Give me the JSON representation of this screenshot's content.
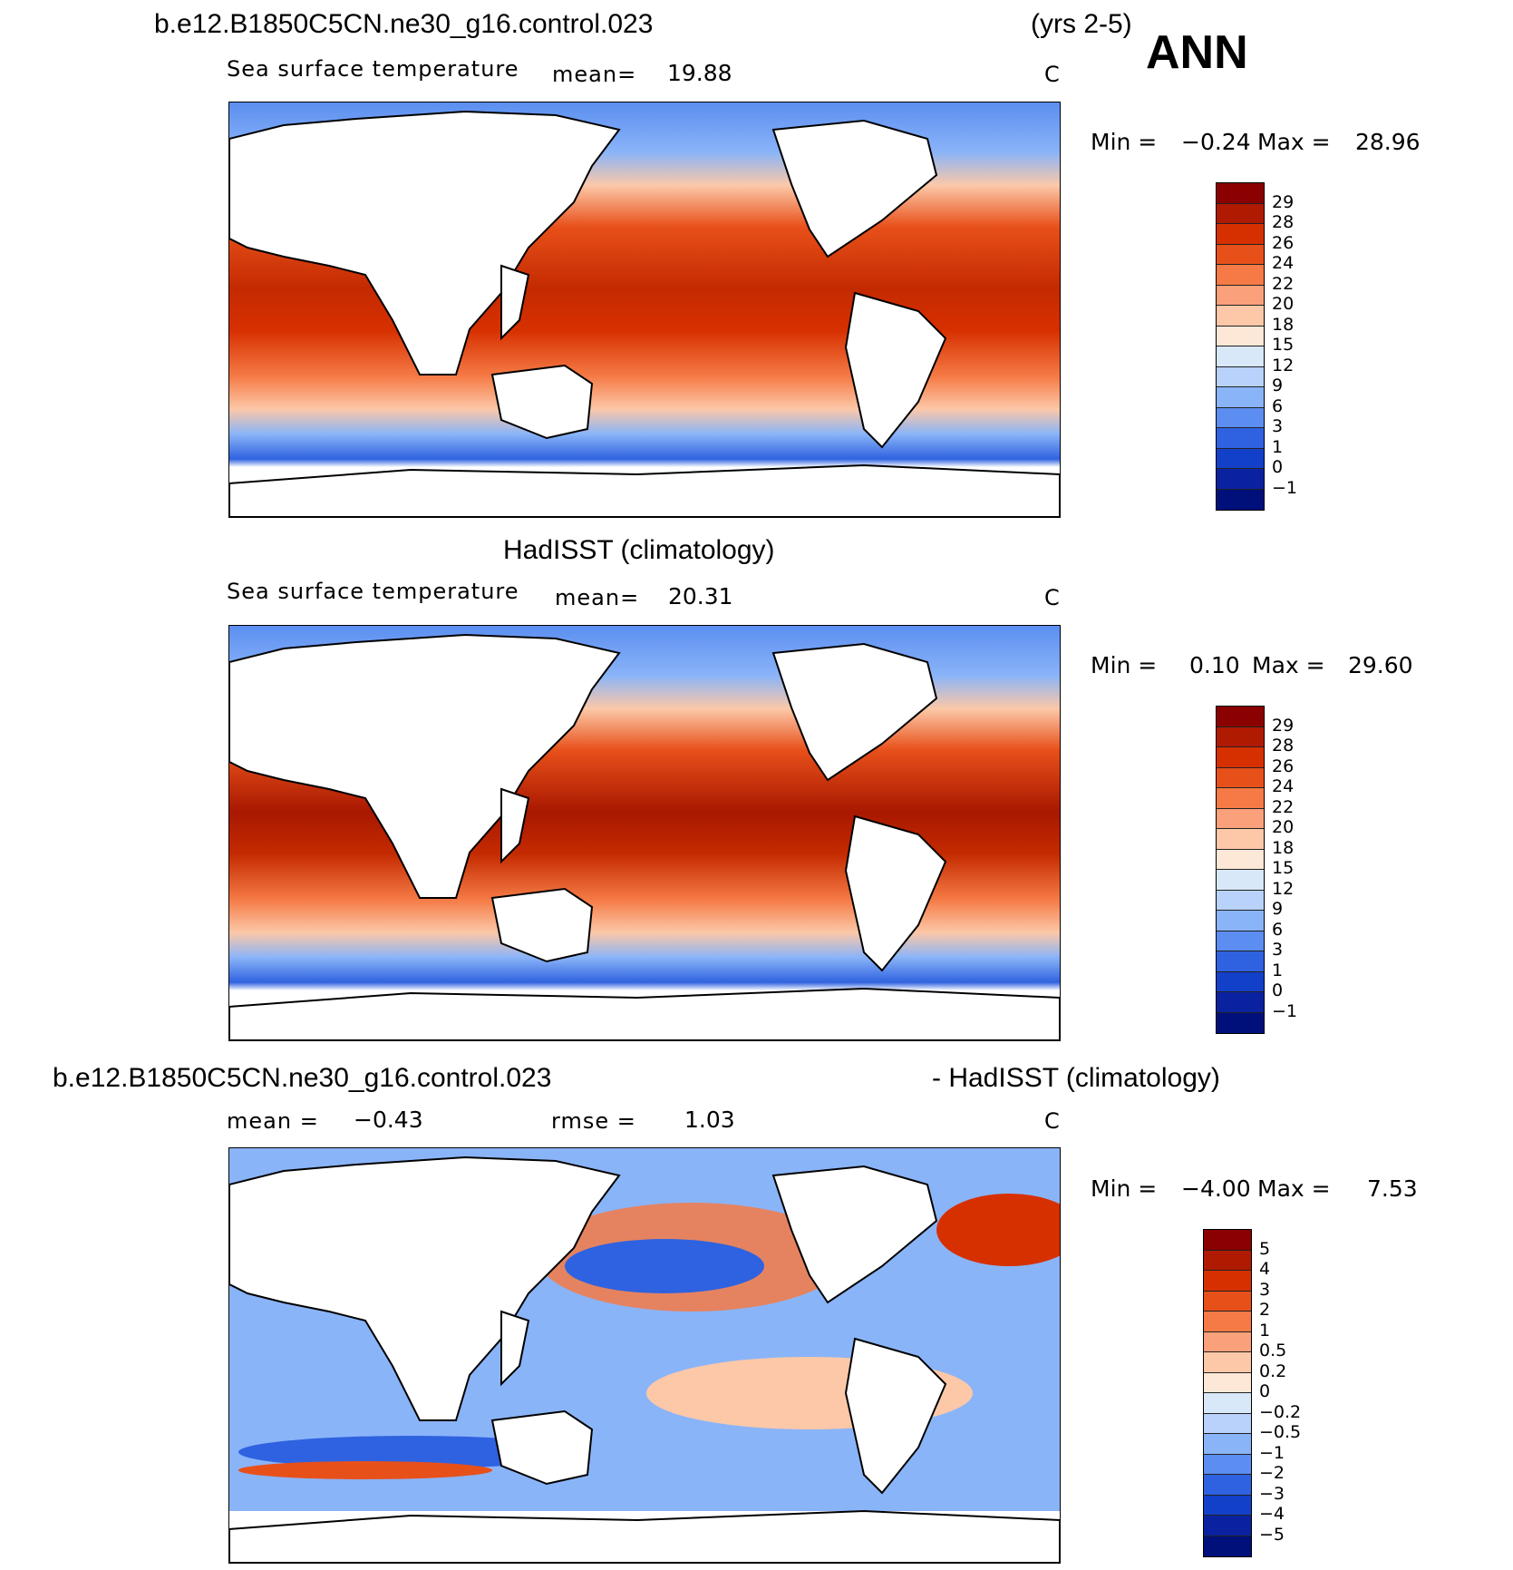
{
  "header": {
    "case_name": "b.e12.B1850C5CN.ne30_g16.control.023",
    "years": "(yrs 2-5)",
    "season": "ANN"
  },
  "panel1": {
    "variable": "Sea surface temperature",
    "mean_label": "mean=",
    "mean_value": "19.88",
    "units": "C",
    "min_label": "Min =",
    "min_value": "−0.24",
    "max_label": "Max =",
    "max_value": "28.96",
    "colorbar_ticks": [
      "29",
      "28",
      "26",
      "24",
      "22",
      "20",
      "18",
      "15",
      "12",
      "9",
      "6",
      "3",
      "1",
      "0",
      "−1"
    ]
  },
  "panel2": {
    "title": "HadISST (climatology)",
    "variable": "Sea surface temperature",
    "mean_label": "mean=",
    "mean_value": "20.31",
    "units": "C",
    "min_label": "Min =",
    "min_value": "0.10",
    "max_label": "Max =",
    "max_value": "29.60",
    "colorbar_ticks": [
      "29",
      "28",
      "26",
      "24",
      "22",
      "20",
      "18",
      "15",
      "12",
      "9",
      "6",
      "3",
      "1",
      "0",
      "−1"
    ]
  },
  "panel3": {
    "title_left": "b.e12.B1850C5CN.ne30_g16.control.023",
    "title_right": "- HadISST (climatology)",
    "mean_label": "mean =",
    "mean_value": "−0.43",
    "rmse_label": "rmse =",
    "rmse_value": "1.03",
    "units": "C",
    "min_label": "Min =",
    "min_value": "−4.00",
    "max_label": "Max =",
    "max_value": "7.53",
    "colorbar_ticks": [
      "5",
      "4",
      "3",
      "2",
      "1",
      "0.5",
      "0.2",
      "0",
      "−0.2",
      "−0.5",
      "−1",
      "−2",
      "−3",
      "−4",
      "−5"
    ]
  },
  "colors": {
    "sst_scale": [
      "#8b0000",
      "#b01a00",
      "#d73000",
      "#e8501a",
      "#f57a45",
      "#faa07a",
      "#fcc8a8",
      "#fde8d8",
      "#d8e8f8",
      "#b8d2fb",
      "#8ab4f8",
      "#5b8ef0",
      "#2f62e0",
      "#1240c8",
      "#0a22a0",
      "#00107a"
    ],
    "diff_scale": [
      "#8b0000",
      "#b01a00",
      "#d73000",
      "#e8501a",
      "#f57a45",
      "#faa07a",
      "#fcc8a8",
      "#fde8d8",
      "#d8e8f8",
      "#b8d2fb",
      "#8ab4f8",
      "#5b8ef0",
      "#2f62e0",
      "#1240c8",
      "#0a22a0",
      "#00107a"
    ]
  }
}
